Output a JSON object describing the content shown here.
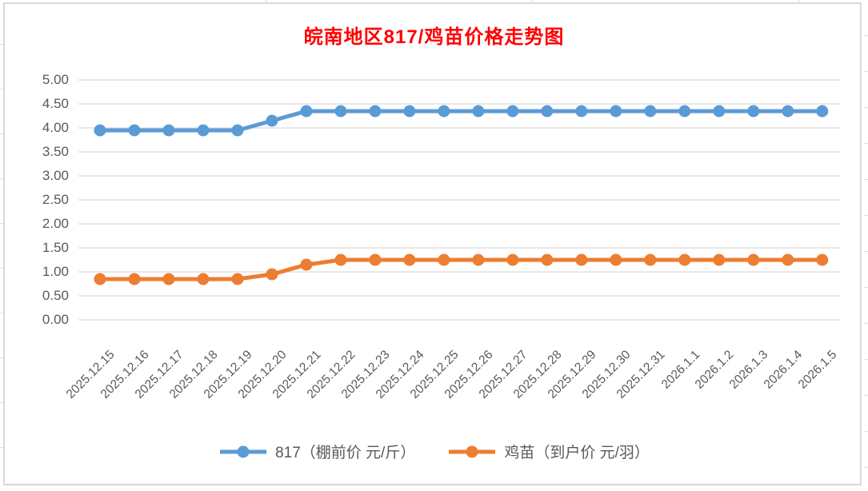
{
  "chart_data": {
    "type": "line",
    "title": "皖南地区817/鸡苗价格走势图",
    "title_color": "#FF0000",
    "categories": [
      "2025.12.15",
      "2025.12.16",
      "2025.12.17",
      "2025.12.18",
      "2025.12.19",
      "2025.12.20",
      "2025.12.21",
      "2025.12.22",
      "2025.12.23",
      "2025.12.24",
      "2025.12.25",
      "2025.12.26",
      "2025.12.27",
      "2025.12.28",
      "2025.12.29",
      "2025.12.30",
      "2025.12.31",
      "2026.1.1",
      "2026.1.2",
      "2026.1.3",
      "2026.1.4",
      "2026.1.5"
    ],
    "series": [
      {
        "name": "817（棚前价 元/斤）",
        "color": "#5B9BD5",
        "values": [
          3.95,
          3.95,
          3.95,
          3.95,
          3.95,
          4.15,
          4.35,
          4.35,
          4.35,
          4.35,
          4.35,
          4.35,
          4.35,
          4.35,
          4.35,
          4.35,
          4.35,
          4.35,
          4.35,
          4.35,
          4.35,
          4.35
        ]
      },
      {
        "name": "鸡苗（到户价 元/羽）",
        "color": "#ED7D31",
        "values": [
          0.85,
          0.85,
          0.85,
          0.85,
          0.85,
          0.95,
          1.15,
          1.25,
          1.25,
          1.25,
          1.25,
          1.25,
          1.25,
          1.25,
          1.25,
          1.25,
          1.25,
          1.25,
          1.25,
          1.25,
          1.25,
          1.25
        ]
      }
    ],
    "xlabel": "",
    "ylabel": "",
    "ylim": [
      0,
      5
    ],
    "ytick_step": 0.5,
    "ytick_decimals": 2,
    "grid": "horizontal",
    "gridline_color": "#D9D9D9",
    "axis_label_color": "#595959",
    "legend_position": "bottom"
  }
}
